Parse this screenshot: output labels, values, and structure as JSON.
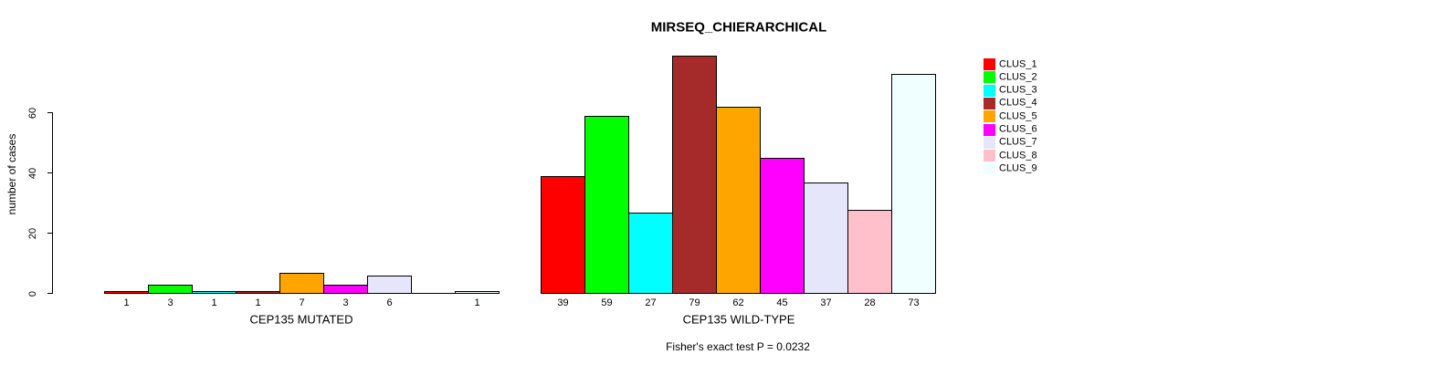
{
  "title": "MIRSEQ_CHIERARCHICAL",
  "y_axis": {
    "label": "number of cases",
    "ticks": [
      0,
      20,
      40,
      60
    ]
  },
  "legend": {
    "items": [
      {
        "label": "CLUS_1",
        "color": "#FF0000"
      },
      {
        "label": "CLUS_2",
        "color": "#00FF00"
      },
      {
        "label": "CLUS_3",
        "color": "#00FFFF"
      },
      {
        "label": "CLUS_4",
        "color": "#A52A2A"
      },
      {
        "label": "CLUS_5",
        "color": "#FFA500"
      },
      {
        "label": "CLUS_6",
        "color": "#FF00FF"
      },
      {
        "label": "CLUS_7",
        "color": "#E6E6FA"
      },
      {
        "label": "CLUS_8",
        "color": "#FFC0CB"
      },
      {
        "label": "CLUS_9",
        "color": "#F0FFFF"
      }
    ]
  },
  "chart_data": {
    "type": "bar",
    "title": "MIRSEQ_CHIERARCHICAL",
    "ylabel": "number of cases",
    "ylim": [
      0,
      80
    ],
    "yticks": [
      0,
      20,
      40,
      60
    ],
    "grid": false,
    "legend_position": "right",
    "categories": [
      "CLUS_1",
      "CLUS_2",
      "CLUS_3",
      "CLUS_4",
      "CLUS_5",
      "CLUS_6",
      "CLUS_7",
      "CLUS_8",
      "CLUS_9"
    ],
    "bar_colors": [
      "#FF0000",
      "#00FF00",
      "#00FFFF",
      "#A52A2A",
      "#FFA500",
      "#FF00FF",
      "#E6E6FA",
      "#FFC0CB",
      "#F0FFFF"
    ],
    "groups": [
      {
        "label": "CEP135 MUTATED",
        "values": [
          1,
          3,
          1,
          1,
          7,
          3,
          6,
          0,
          1
        ]
      },
      {
        "label": "CEP135 WILD-TYPE",
        "values": [
          39,
          59,
          27,
          79,
          62,
          45,
          37,
          28,
          73
        ]
      }
    ],
    "annotation": "Fisher's exact test P = 0.0232"
  }
}
